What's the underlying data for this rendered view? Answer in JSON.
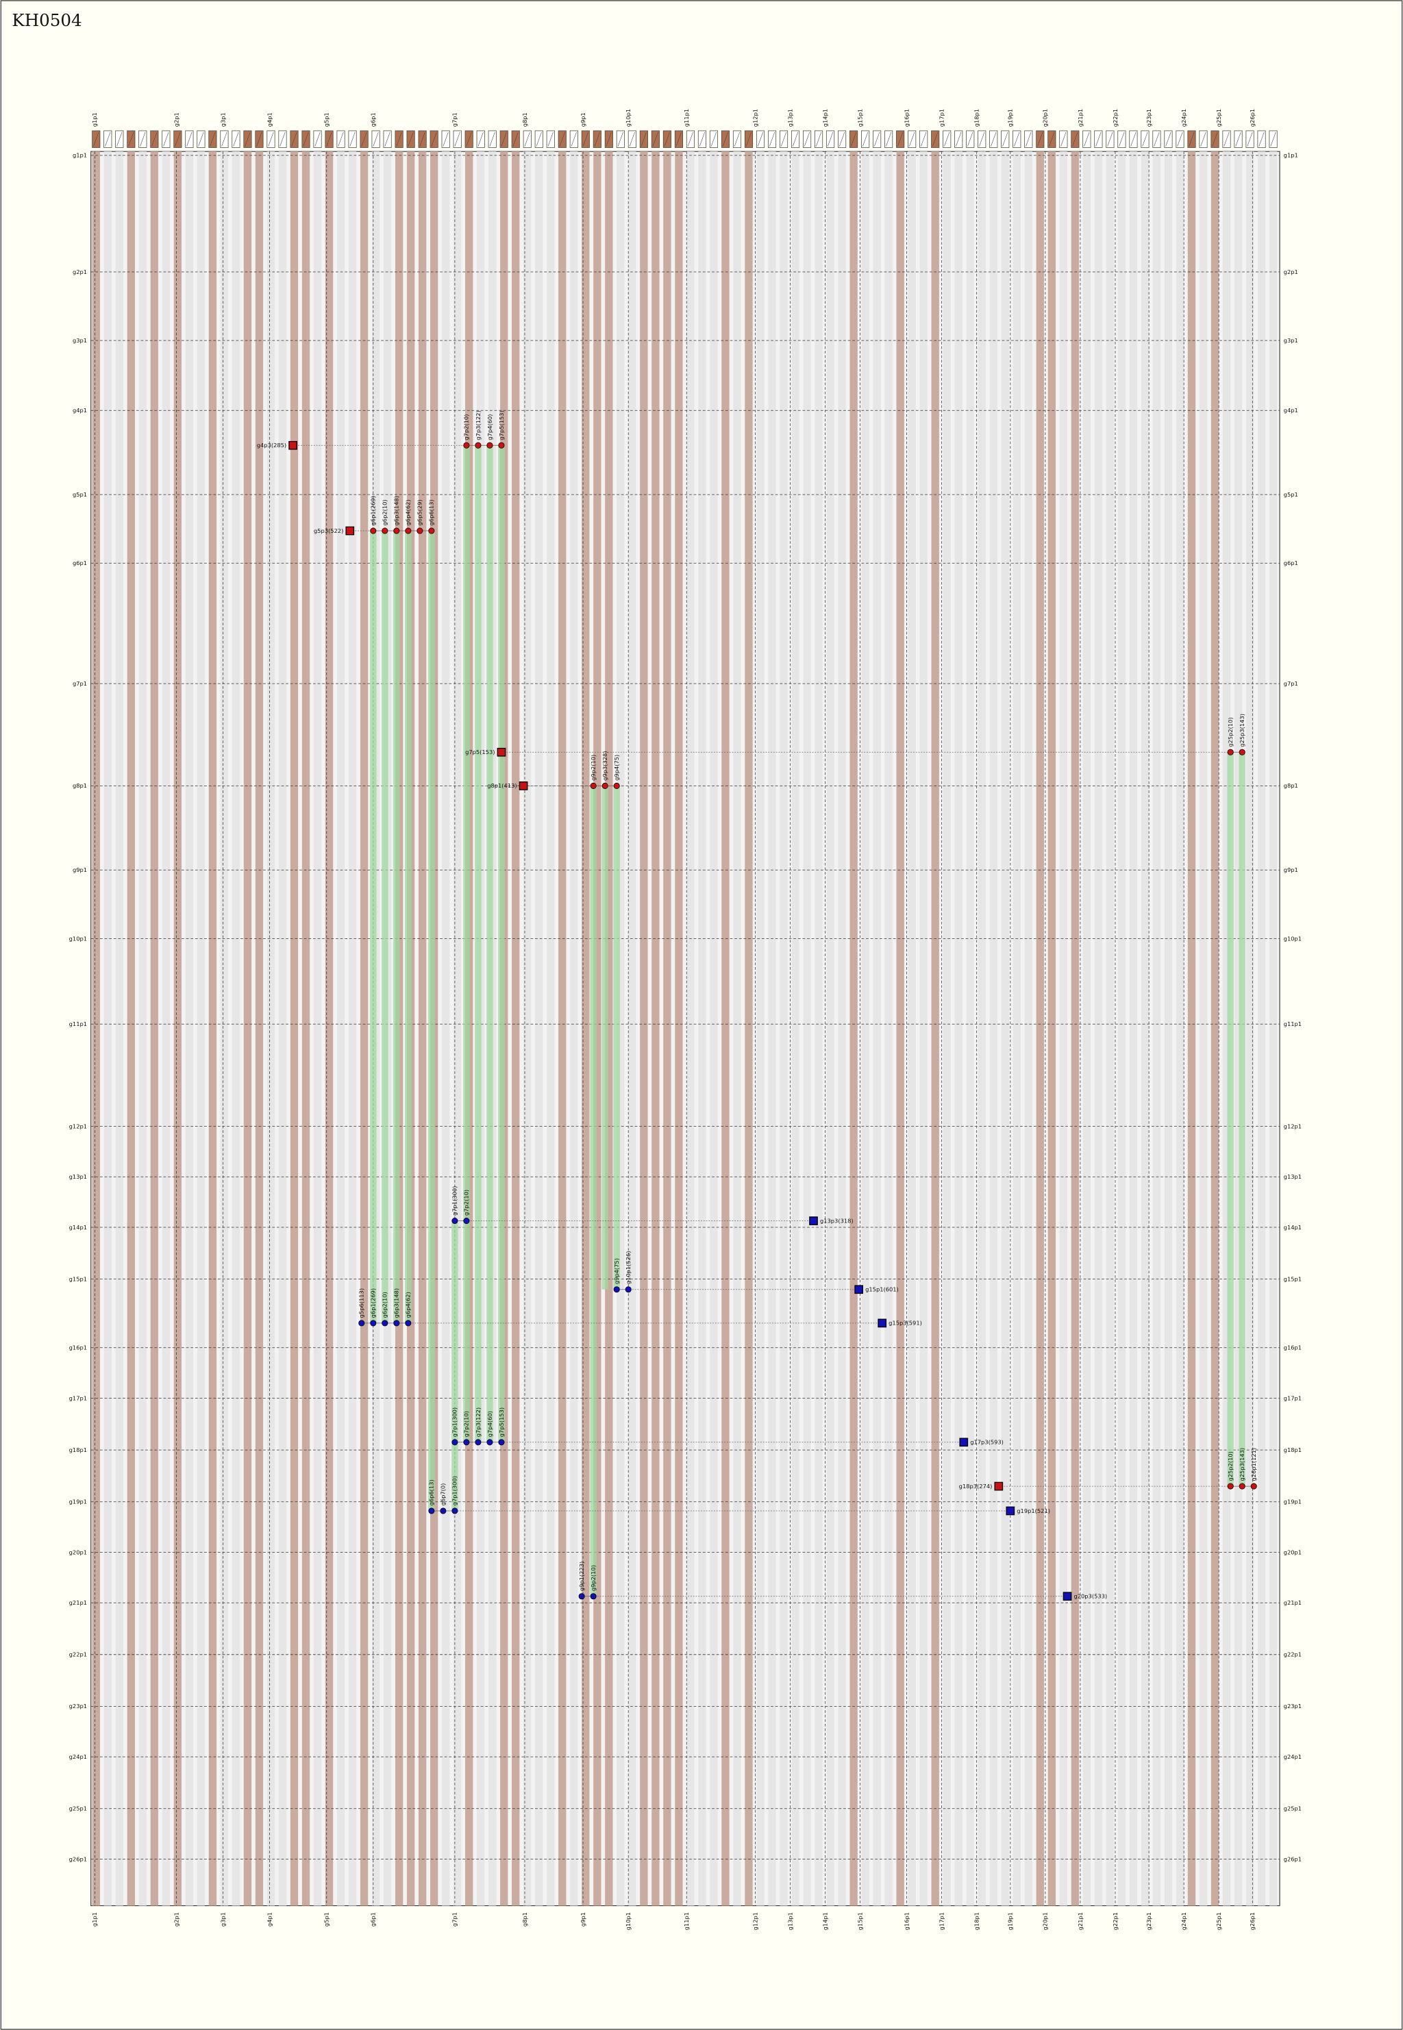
{
  "title": "KH0504",
  "columns": [
    "g1p1",
    "g2p1",
    "g3p1",
    "g4p1",
    "g5p1",
    "g6p1",
    "g7p1",
    "g8p1",
    "g9p1",
    "g10p1",
    "g11p1",
    "g12p1",
    "g13p1",
    "g14p1",
    "g15p1",
    "g16p1",
    "g17p1",
    "g18p1",
    "g19p1",
    "g20p1",
    "g21p1",
    "g22p1",
    "g23p1",
    "g24p1",
    "g25p1",
    "g26p1"
  ],
  "rows": [
    "g1p1",
    "g2p1",
    "g3p1",
    "g4p1",
    "g5p1",
    "g6p1",
    "g7p1",
    "g8p1",
    "g9p1",
    "g10p1",
    "g11p1",
    "g12p1",
    "g13p1",
    "g14p1",
    "g15p1",
    "g16p1",
    "g17p1",
    "g18p1",
    "g19p1",
    "g20p1",
    "g21p1",
    "g22p1",
    "g23p1",
    "g24p1",
    "g25p1",
    "g26p1"
  ],
  "groups": [
    {
      "gene": "g4p3(285)",
      "color": "#cc1111",
      "hits": [
        "g7p2(10)",
        "g7p3(122)",
        "g7p4(60)",
        "g7p5(153)"
      ]
    },
    {
      "gene": "g5p3(522)",
      "color": "#cc1111",
      "hits": [
        "g6p1(269)",
        "g6p2(10)",
        "g6p3(148)",
        "g6p4(62)",
        "g6p5(29)",
        "g6p6(13)"
      ]
    },
    {
      "gene": "g7p5(153)",
      "color": "#cc1111",
      "hits": [
        "g25p2(10)",
        "g25p3(143)"
      ]
    },
    {
      "gene": "g8p1(413)",
      "color": "#cc1111",
      "hits": [
        "g9p2(10)",
        "g9p3(328)",
        "g9p4(75)"
      ]
    },
    {
      "gene": "g13p3(318)",
      "color": "#1111bb",
      "hits": [
        "g7p1(300)",
        "g7p2(10)"
      ]
    },
    {
      "gene": "g15p1(601)",
      "color": "#1111bb",
      "hits": [
        "g9p4(75)",
        "g10p1(526)"
      ]
    },
    {
      "gene": "g15p3(591)",
      "color": "#1111bb",
      "hits": [
        "g5p6(113)",
        "g6p1(269)",
        "g6p2(10)",
        "g6p3(148)",
        "g6p4(62)"
      ]
    },
    {
      "gene": "g17p3(593)",
      "color": "#1111bb",
      "hits": [
        "g7p1(300)",
        "g7p2(10)",
        "g7p3(122)",
        "g7p4(60)",
        "g7p5(153)"
      ]
    },
    {
      "gene": "g18p3(274)",
      "color": "#cc1111",
      "hits": [
        "g25p2(10)",
        "g25p3(143)",
        "g26p1(121)"
      ]
    },
    {
      "gene": "g19p1(521)",
      "color": "#1111bb",
      "hits": [
        "g6p6(13)",
        "g6p7(0)",
        "g7p1(300)"
      ]
    },
    {
      "gene": "g20p3(533)",
      "color": "#1111bb",
      "hits": [
        "g9p1(223)",
        "g9p2(10)"
      ]
    }
  ]
}
